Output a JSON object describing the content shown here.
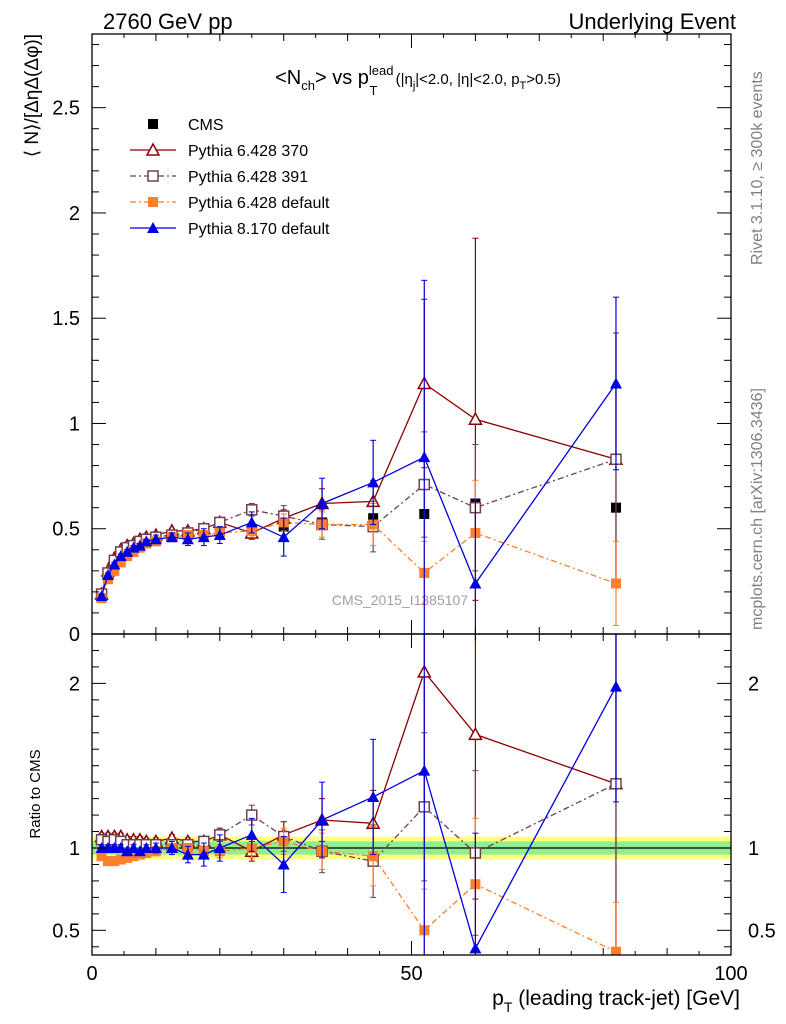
{
  "header": {
    "left": "2760 GeV pp",
    "right": "Underlying Event"
  },
  "side_labels": {
    "rivet": "Rivet 3.1.10, ≥ 300k events",
    "mcplots": "mcplots.cern.ch [arXiv:1306.3436]"
  },
  "watermark": "CMS_2015_I1385107",
  "title": {
    "part1": "<N",
    "sub1": "ch",
    "part2": "> vs p",
    "sup2": "lead",
    "sub2": "T",
    "part3": " (|η",
    "sub3": "j",
    "part4": "|<2.0, |η|<2.0, p",
    "sub4": "T",
    "part5": ">0.5)"
  },
  "chart_data": [
    {
      "type": "scatter",
      "panel": "main",
      "ylabel": "⟨ N⟩/[ΔηΔ(Δφ)]",
      "xlim": [
        0,
        100
      ],
      "ylim": [
        0,
        2.85
      ],
      "xticks": [
        0,
        50,
        100
      ],
      "yticks": [
        {
          "v": 0,
          "label": "0"
        },
        {
          "v": 0.5,
          "label": "0.5"
        },
        {
          "v": 1,
          "label": "1"
        },
        {
          "v": 1.5,
          "label": "1.5"
        },
        {
          "v": 2,
          "label": "2"
        },
        {
          "v": 2.5,
          "label": "2.5"
        }
      ],
      "legend_position": "top-left",
      "x": [
        1.5,
        2.5,
        3.5,
        4.5,
        5.5,
        6.5,
        7.5,
        8.5,
        10,
        12.5,
        15,
        17.5,
        20,
        25,
        30,
        36,
        44,
        52,
        60,
        82
      ],
      "series": [
        {
          "name": "CMS",
          "color": "#000000",
          "marker": "square-filled",
          "line": "none",
          "values": [
            0.18,
            0.28,
            0.33,
            0.37,
            0.4,
            0.41,
            0.43,
            0.44,
            0.45,
            0.46,
            0.47,
            0.48,
            0.49,
            0.49,
            0.51,
            0.53,
            0.55,
            0.57,
            0.62,
            0.6
          ],
          "errors": [
            0,
            0,
            0,
            0,
            0,
            0,
            0,
            0,
            0,
            0,
            0,
            0,
            0,
            0,
            0,
            0,
            0,
            0,
            0,
            0
          ]
        },
        {
          "name": "Pythia 6.428 370",
          "color": "#8b0000",
          "marker": "triangle-open",
          "line": "solid",
          "values": [
            0.19,
            0.3,
            0.36,
            0.4,
            0.42,
            0.43,
            0.45,
            0.46,
            0.47,
            0.49,
            0.49,
            0.5,
            0.53,
            0.48,
            0.55,
            0.62,
            0.63,
            1.19,
            1.02,
            0.83
          ],
          "errors": [
            0.01,
            0.01,
            0.01,
            0.01,
            0.01,
            0.01,
            0.01,
            0.01,
            0.01,
            0.01,
            0.01,
            0.02,
            0.02,
            0.03,
            0.04,
            0.07,
            0.1,
            0.4,
            0.86,
            0.6
          ]
        },
        {
          "name": "Pythia 6.428 391",
          "color": "#704050",
          "marker": "square-open",
          "line": "dashdot",
          "values": [
            0.19,
            0.29,
            0.35,
            0.39,
            0.41,
            0.42,
            0.44,
            0.45,
            0.46,
            0.47,
            0.48,
            0.5,
            0.53,
            0.59,
            0.56,
            0.52,
            0.51,
            0.71,
            0.6,
            0.83
          ],
          "errors": [
            0.01,
            0.01,
            0.01,
            0.01,
            0.01,
            0.01,
            0.01,
            0.01,
            0.01,
            0.01,
            0.01,
            0.02,
            0.02,
            0.03,
            0.05,
            0.07,
            0.12,
            0.25,
            0.3,
            0.6
          ]
        },
        {
          "name": "Pythia 6.428 default",
          "color": "#ff7f2a",
          "marker": "square-filled",
          "line": "dashdot",
          "values": [
            0.17,
            0.26,
            0.3,
            0.34,
            0.37,
            0.39,
            0.41,
            0.43,
            0.44,
            0.46,
            0.47,
            0.47,
            0.48,
            0.49,
            0.53,
            0.52,
            0.52,
            0.29,
            0.48,
            0.24
          ],
          "errors": [
            0.01,
            0.01,
            0.01,
            0.01,
            0.01,
            0.01,
            0.01,
            0.01,
            0.01,
            0.01,
            0.01,
            0.02,
            0.02,
            0.03,
            0.04,
            0.06,
            0.1,
            0.15,
            0.25,
            0.2
          ]
        },
        {
          "name": "Pythia 8.170 default",
          "color": "#0000e0",
          "marker": "triangle-filled",
          "line": "solid",
          "values": [
            0.18,
            0.28,
            0.33,
            0.37,
            0.39,
            0.41,
            0.42,
            0.44,
            0.45,
            0.46,
            0.45,
            0.46,
            0.47,
            0.53,
            0.46,
            0.62,
            0.72,
            0.84,
            0.24,
            1.19
          ],
          "errors": [
            0.01,
            0.01,
            0.01,
            0.01,
            0.01,
            0.01,
            0.01,
            0.01,
            0.02,
            0.02,
            0.03,
            0.04,
            0.04,
            0.05,
            0.09,
            0.12,
            0.2,
            0.84,
            0.4,
            0.41
          ]
        }
      ]
    },
    {
      "type": "scatter",
      "panel": "ratio",
      "ylabel": "Ratio to CMS",
      "xlabel": "p_T (leading track-jet) [GeV]",
      "xlim": [
        0,
        100
      ],
      "ylim": [
        0.35,
        2.3
      ],
      "xticks": [
        {
          "v": 0,
          "label": "0"
        },
        {
          "v": 50,
          "label": "50"
        },
        {
          "v": 100,
          "label": "100"
        }
      ],
      "yticks": [
        {
          "v": 0.5,
          "label": "0.5"
        },
        {
          "v": 1,
          "label": "1"
        },
        {
          "v": 2,
          "label": "2"
        }
      ],
      "band_inner_color": "#90ee90",
      "band_outer_color": "#ffff80",
      "band_inner": [
        0.96,
        1.04
      ],
      "band_outer": [
        0.93,
        1.07
      ],
      "x": [
        1.5,
        2.5,
        3.5,
        4.5,
        5.5,
        6.5,
        7.5,
        8.5,
        10,
        12.5,
        15,
        17.5,
        20,
        25,
        30,
        36,
        44,
        52,
        60,
        82
      ],
      "series": [
        {
          "name": "Pythia 6.428 370",
          "color": "#8b0000",
          "marker": "triangle-open",
          "line": "solid",
          "values": [
            1.07,
            1.07,
            1.07,
            1.07,
            1.05,
            1.05,
            1.05,
            1.04,
            1.04,
            1.06,
            1.04,
            1.04,
            1.08,
            0.98,
            1.08,
            1.17,
            1.15,
            2.07,
            1.69,
            1.39
          ],
          "errors": [
            0.02,
            0.02,
            0.02,
            0.02,
            0.02,
            0.02,
            0.02,
            0.02,
            0.02,
            0.02,
            0.02,
            0.03,
            0.04,
            0.06,
            0.08,
            0.13,
            0.2,
            0.8,
            1.0,
            1.0
          ]
        },
        {
          "name": "Pythia 6.428 391",
          "color": "#704050",
          "marker": "square-open",
          "line": "dashdot",
          "values": [
            1.05,
            1.04,
            1.05,
            1.04,
            1.02,
            1.02,
            1.02,
            1.02,
            1.02,
            1.02,
            1.02,
            1.04,
            1.08,
            1.2,
            1.07,
            0.98,
            0.92,
            1.25,
            0.97,
            1.39
          ],
          "errors": [
            0.02,
            0.02,
            0.02,
            0.02,
            0.02,
            0.02,
            0.02,
            0.02,
            0.02,
            0.02,
            0.02,
            0.03,
            0.04,
            0.06,
            0.09,
            0.13,
            0.22,
            0.45,
            0.5,
            1.0
          ]
        },
        {
          "name": "Pythia 6.428 default",
          "color": "#ff7f2a",
          "marker": "square-filled",
          "line": "dashdot",
          "values": [
            0.95,
            0.92,
            0.92,
            0.93,
            0.94,
            0.95,
            0.96,
            0.97,
            0.98,
            1.0,
            1.0,
            0.98,
            0.98,
            1.0,
            1.04,
            0.98,
            0.95,
            0.5,
            0.78,
            0.37
          ],
          "errors": [
            0.02,
            0.02,
            0.02,
            0.02,
            0.02,
            0.02,
            0.02,
            0.02,
            0.02,
            0.02,
            0.02,
            0.03,
            0.04,
            0.06,
            0.08,
            0.11,
            0.18,
            0.25,
            0.4,
            0.3
          ]
        },
        {
          "name": "Pythia 8.170 default",
          "color": "#0000e0",
          "marker": "triangle-filled",
          "line": "solid",
          "values": [
            1.0,
            1.0,
            1.0,
            1.0,
            0.98,
            1.0,
            0.98,
            1.0,
            1.0,
            1.0,
            0.96,
            0.96,
            1.0,
            1.08,
            0.9,
            1.17,
            1.31,
            1.47,
            0.39,
            1.98
          ],
          "errors": [
            0.02,
            0.02,
            0.02,
            0.02,
            0.02,
            0.02,
            0.02,
            0.02,
            0.03,
            0.04,
            0.05,
            0.07,
            0.08,
            0.1,
            0.17,
            0.23,
            0.35,
            1.45,
            0.7,
            0.7
          ]
        }
      ]
    }
  ]
}
